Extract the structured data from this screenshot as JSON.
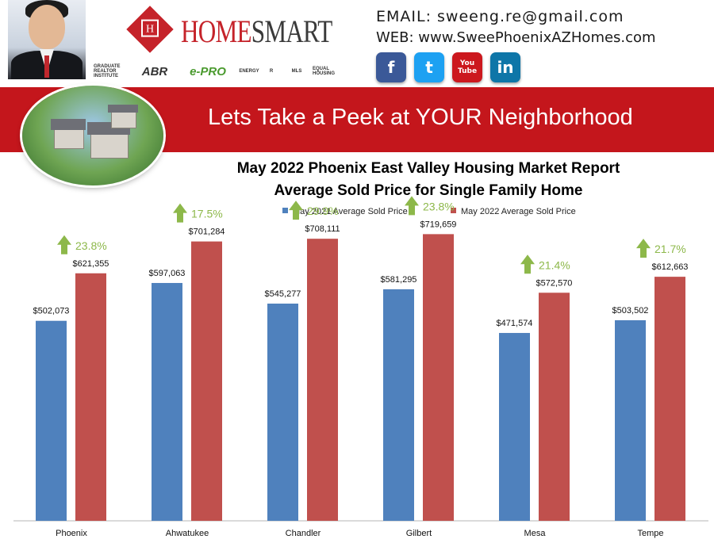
{
  "header": {
    "logo_word_1": "HOME",
    "logo_word_2": "SMART",
    "email": "EMAIL: sweeng.re@gmail.com",
    "web": "WEB: www.SweePhoenixAZHomes.com",
    "badges": [
      "GRADUATE REALTOR INSTITUTE",
      "ABR",
      "e-PRO",
      "ENERGY",
      "R",
      "MLS",
      "EQUAL HOUSING"
    ],
    "social": [
      {
        "icon": "facebook-icon",
        "glyph": "f",
        "color": "#3b5998"
      },
      {
        "icon": "twitter-icon",
        "glyph": "t",
        "color": "#1da1f2"
      },
      {
        "icon": "youtube-icon",
        "glyph": "You Tube",
        "color": "#cc181e"
      },
      {
        "icon": "linkedin-icon",
        "glyph": "in",
        "color": "#0e76a8"
      }
    ]
  },
  "banner": {
    "title": "Lets Take a Peek at YOUR Neighborhood",
    "color": "#c4161c"
  },
  "chart_data": {
    "type": "bar",
    "title": "May 2022 Phoenix East Valley Housing Market Report",
    "subtitle": "Average Sold Price for Single Family Home",
    "categories": [
      "Phoenix",
      "Ahwatukee",
      "Chandler",
      "Gilbert",
      "Mesa",
      "Tempe"
    ],
    "series": [
      {
        "name": "May 2021 Average Sold Price",
        "color": "#4f81bd",
        "values": [
          502073,
          597063,
          545277,
          581295,
          471574,
          503502
        ],
        "labels": [
          "$502,073",
          "$597,063",
          "$545,277",
          "$581,295",
          "$471,574",
          "$503,502"
        ]
      },
      {
        "name": "May 2022 Average Sold Price",
        "color": "#c0504d",
        "values": [
          621355,
          701284,
          708111,
          719659,
          572570,
          612663
        ],
        "labels": [
          "$621,355",
          "$701,284",
          "$708,111",
          "$719,659",
          "$572,570",
          "$612,663"
        ]
      }
    ],
    "annotations": [
      "23.8%",
      "17.5%",
      "29.9%",
      "23.8%",
      "21.4%",
      "21.7%"
    ],
    "annotation_color": "#8db84a",
    "ylim": [
      0,
      800000
    ],
    "grid": false,
    "legend": "top-center"
  }
}
